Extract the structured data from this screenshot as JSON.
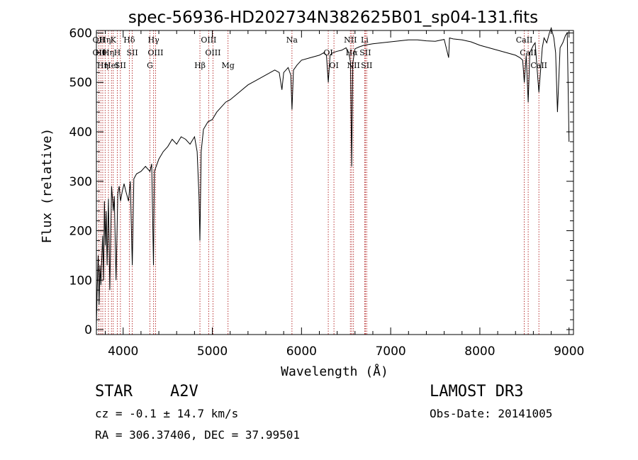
{
  "chart_data": {
    "type": "line",
    "title": "spec-56936-HD202734N382625B01_sp04-131.fits",
    "xlabel": "Wavelength (Å)",
    "ylabel": "Flux (relative)",
    "xlim": [
      3700,
      9050
    ],
    "ylim": [
      -10,
      605
    ],
    "xticks": [
      4000,
      5000,
      6000,
      7000,
      8000,
      9000
    ],
    "yticks": [
      0,
      100,
      200,
      300,
      400,
      500,
      600
    ],
    "line_color": "#000000",
    "marker_color": "#b22222",
    "series": [
      {
        "x": [
          3700,
          3710,
          3720,
          3730,
          3740,
          3750,
          3760,
          3770,
          3780,
          3790,
          3800,
          3810,
          3820,
          3835,
          3850,
          3870,
          3889,
          3900,
          3920,
          3940,
          3955,
          3970,
          3990,
          4010,
          4030,
          4060,
          4080,
          4102,
          4120,
          4150,
          4200,
          4250,
          4300,
          4320,
          4340,
          4350,
          4370,
          4400,
          4450,
          4500,
          4550,
          4600,
          4650,
          4700,
          4750,
          4800,
          4830,
          4850,
          4861,
          4875,
          4900,
          4950,
          5000,
          5050,
          5100,
          5150,
          5200,
          5300,
          5400,
          5500,
          5600,
          5700,
          5750,
          5780,
          5800,
          5850,
          5880,
          5893,
          5910,
          5950,
          6000,
          6100,
          6200,
          6250,
          6280,
          6300,
          6320,
          6350,
          6400,
          6450,
          6500,
          6530,
          6550,
          6563,
          6575,
          6600,
          6650,
          6700,
          6800,
          6900,
          7000,
          7100,
          7200,
          7300,
          7400,
          7500,
          7600,
          7650,
          7660,
          7700,
          7800,
          7900,
          8000,
          8100,
          8200,
          8300,
          8400,
          8450,
          8480,
          8498,
          8520,
          8542,
          8560,
          8600,
          8620,
          8662,
          8700,
          8720,
          8750,
          8780,
          8800,
          8830,
          8850,
          8870,
          8900,
          8930,
          8960,
          8980,
          9000
        ],
        "y": [
          10,
          90,
          150,
          50,
          130,
          90,
          140,
          190,
          100,
          260,
          170,
          240,
          130,
          265,
          80,
          290,
          240,
          270,
          100,
          275,
          290,
          260,
          280,
          295,
          280,
          260,
          300,
          130,
          305,
          315,
          320,
          330,
          320,
          335,
          130,
          320,
          330,
          345,
          360,
          370,
          385,
          375,
          390,
          385,
          375,
          390,
          360,
          270,
          180,
          360,
          405,
          420,
          425,
          440,
          450,
          460,
          465,
          480,
          495,
          505,
          515,
          525,
          520,
          485,
          520,
          530,
          515,
          445,
          525,
          535,
          545,
          550,
          555,
          560,
          555,
          500,
          555,
          560,
          563,
          565,
          570,
          560,
          540,
          330,
          540,
          568,
          572,
          575,
          578,
          580,
          582,
          584,
          586,
          586,
          584,
          583,
          587,
          550,
          590,
          588,
          586,
          582,
          575,
          570,
          565,
          560,
          555,
          550,
          545,
          500,
          555,
          460,
          560,
          575,
          580,
          480,
          570,
          590,
          580,
          600,
          610,
          590,
          560,
          440,
          570,
          580,
          595,
          600,
          380
        ]
      }
    ],
    "line_markers": [
      {
        "x": 3727,
        "labels": [
          "OII",
          "OII"
        ]
      },
      {
        "x": 3750,
        "labels": [
          "H&theta;"
        ]
      },
      {
        "x": 3771,
        "labels": [
          "H&eta;"
        ]
      },
      {
        "x": 3798,
        "labels": [
          "H&eta;"
        ]
      },
      {
        "x": 3835,
        "labels": [
          "H&eta;"
        ]
      },
      {
        "x": 3869,
        "labels": [
          "HeI"
        ]
      },
      {
        "x": 3889,
        "labels": [
          "K"
        ]
      },
      {
        "x": 3934,
        "labels": [
          "H"
        ]
      },
      {
        "x": 3969,
        "labels": [
          "SII"
        ]
      },
      {
        "x": 4069,
        "labels": [
          "H&delta;"
        ]
      },
      {
        "x": 4102,
        "labels": [
          "SII"
        ]
      },
      {
        "x": 4300,
        "labels": [
          "G"
        ]
      },
      {
        "x": 4341,
        "labels": [
          "H&gamma;"
        ]
      },
      {
        "x": 4363,
        "labels": [
          "OIII"
        ]
      },
      {
        "x": 4861,
        "labels": [
          "H&beta;"
        ]
      },
      {
        "x": 4959,
        "labels": [
          "OIII"
        ]
      },
      {
        "x": 5007,
        "labels": [
          "OIII"
        ]
      },
      {
        "x": 5176,
        "labels": [
          "Mg"
        ]
      },
      {
        "x": 5893,
        "labels": [
          "Na"
        ]
      },
      {
        "x": 6300,
        "labels": [
          "OI"
        ]
      },
      {
        "x": 6364,
        "labels": [
          "OI"
        ]
      },
      {
        "x": 6548,
        "labels": [
          "NII"
        ]
      },
      {
        "x": 6563,
        "labels": [
          "H&alpha;"
        ]
      },
      {
        "x": 6583,
        "labels": [
          "NII"
        ]
      },
      {
        "x": 6708,
        "labels": [
          "Li"
        ]
      },
      {
        "x": 6716,
        "labels": [
          "SII"
        ]
      },
      {
        "x": 6731,
        "labels": [
          "SII"
        ]
      },
      {
        "x": 8498,
        "labels": [
          "CaII"
        ]
      },
      {
        "x": 8542,
        "labels": [
          "CaII"
        ]
      },
      {
        "x": 8662,
        "labels": [
          "CaII"
        ]
      }
    ]
  },
  "info": {
    "object_class": "STAR",
    "subclass": "A2V",
    "survey": "LAMOST DR3",
    "redshift_line": "cz = -0.1 ± 14.7 km/s",
    "obs_date": "Obs-Date: 20141005",
    "coords": "RA = 306.37406, DEC =  37.99501"
  }
}
